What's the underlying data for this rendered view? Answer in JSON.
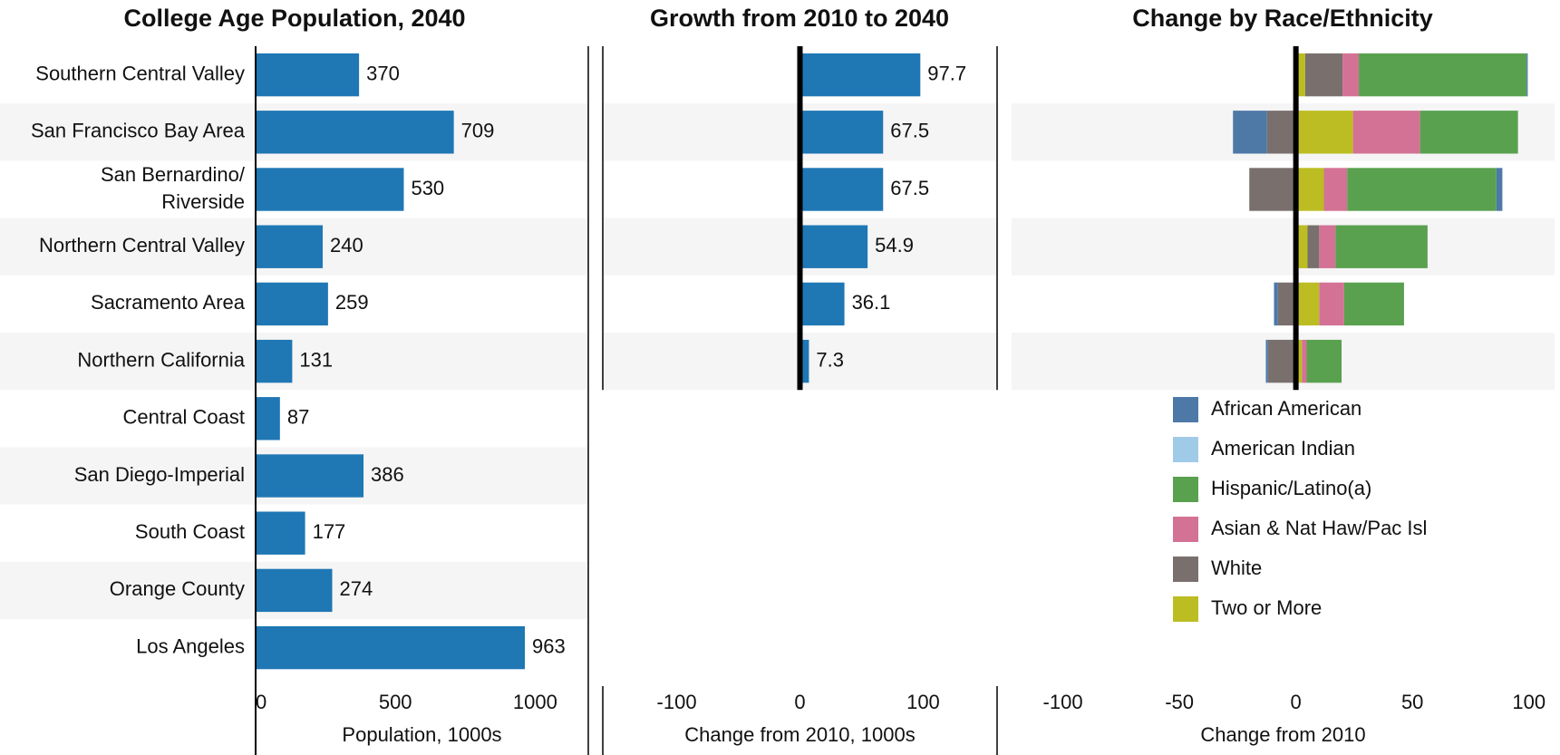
{
  "chart_data": [
    {
      "type": "bar",
      "title": "College Age Population, 2040",
      "xlabel": "Population, 1000s",
      "categories": [
        "Southern Central Valley",
        "San Francisco Bay Area",
        "San Bernardino/ Riverside",
        "Northern Central Valley",
        "Sacramento Area",
        "Northern California",
        "Central Coast",
        "San Diego-Imperial",
        "South Coast",
        "Orange County",
        "Los Angeles"
      ],
      "values": [
        370,
        709,
        530,
        240,
        259,
        131,
        87,
        386,
        177,
        274,
        963
      ],
      "color": "#1f77b4",
      "xlim": [
        0,
        1190
      ],
      "xticks": [
        0,
        500,
        1000
      ]
    },
    {
      "type": "bar",
      "title": "Growth from 2010 to 2040",
      "xlabel": "Change from 2010, 1000s",
      "values": [
        97.7,
        67.5,
        67.5,
        54.9,
        36.1,
        7.3
      ],
      "color": "#1f77b4",
      "xlim": [
        -160,
        160
      ],
      "xticks": [
        -100,
        0,
        100
      ]
    },
    {
      "type": "stacked_bar",
      "title": "Change by Race/Ethnicity",
      "xlabel": "Change from 2010",
      "xlim": [
        -122,
        111
      ],
      "xticks": [
        -100,
        -50,
        0,
        50,
        100
      ],
      "series": [
        {
          "name": "African American",
          "color": "#4e79a7",
          "values": [
            0.5,
            -14.6,
            2.6,
            0,
            -1.7,
            -0.9
          ]
        },
        {
          "name": "American Indian",
          "color": "#a0cbe8",
          "values": [
            0,
            0,
            0,
            0,
            0,
            0
          ]
        },
        {
          "name": "Hispanic/Latino(a)",
          "color": "#59a14f",
          "values": [
            72,
            42,
            64,
            39.5,
            25.7,
            15
          ]
        },
        {
          "name": "Asian & Nat Haw/Pac Isl",
          "color": "#d37295",
          "values": [
            7,
            28.8,
            10,
            7,
            10.7,
            2
          ]
        },
        {
          "name": "White",
          "color": "#79706e",
          "values": [
            16,
            -12.4,
            -20,
            5,
            -7.7,
            -12
          ]
        },
        {
          "name": "Two or More",
          "color": "#bcbd22",
          "values": [
            4,
            24.5,
            12,
            5,
            10,
            2.6
          ]
        }
      ]
    }
  ]
}
